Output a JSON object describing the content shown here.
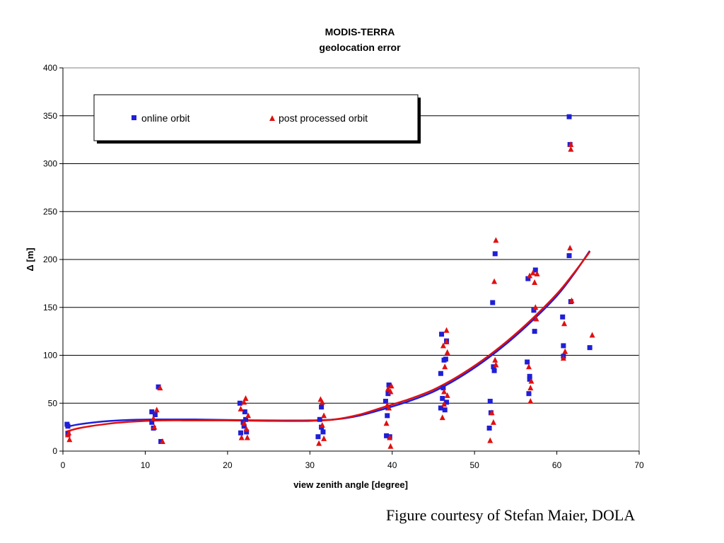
{
  "chart_data": {
    "type": "scatter",
    "title": [
      "MODIS-TERRA",
      "geolocation error"
    ],
    "xlabel": "view zenith angle [degree]",
    "ylabel": "Δ [m]",
    "xlim": [
      0,
      70
    ],
    "ylim": [
      0,
      400
    ],
    "xticks": [
      0,
      10,
      20,
      30,
      40,
      50,
      60,
      70
    ],
    "yticks": [
      0,
      50,
      100,
      150,
      200,
      250,
      300,
      350,
      400
    ],
    "grid": "horizontal",
    "legend_position": "top-left",
    "series": [
      {
        "name": "online orbit",
        "marker": "square",
        "color": "#1f1fd6",
        "points": [
          [
            0.5,
            28
          ],
          [
            0.6,
            26
          ],
          [
            0.6,
            18
          ],
          [
            10.8,
            41
          ],
          [
            10.8,
            30
          ],
          [
            11.0,
            24
          ],
          [
            11.2,
            38
          ],
          [
            11.6,
            67
          ],
          [
            11.9,
            10
          ],
          [
            21.5,
            50
          ],
          [
            21.6,
            19
          ],
          [
            21.9,
            30
          ],
          [
            22.0,
            26
          ],
          [
            22.1,
            41
          ],
          [
            22.2,
            33
          ],
          [
            22.3,
            20
          ],
          [
            31.0,
            15
          ],
          [
            31.2,
            33
          ],
          [
            31.4,
            46
          ],
          [
            31.4,
            25
          ],
          [
            31.6,
            20
          ],
          [
            39.2,
            52
          ],
          [
            39.3,
            16
          ],
          [
            39.4,
            37
          ],
          [
            39.5,
            45
          ],
          [
            39.5,
            60
          ],
          [
            39.6,
            69
          ],
          [
            39.7,
            15
          ],
          [
            45.9,
            81
          ],
          [
            45.9,
            45
          ],
          [
            46.0,
            122
          ],
          [
            46.1,
            55
          ],
          [
            46.2,
            66
          ],
          [
            46.3,
            95
          ],
          [
            46.4,
            43
          ],
          [
            46.5,
            96
          ],
          [
            46.6,
            115
          ],
          [
            46.6,
            51
          ],
          [
            51.8,
            24
          ],
          [
            51.9,
            52
          ],
          [
            52.0,
            40
          ],
          [
            52.2,
            155
          ],
          [
            52.3,
            88
          ],
          [
            52.4,
            84
          ],
          [
            52.5,
            206
          ],
          [
            56.4,
            93
          ],
          [
            56.5,
            180
          ],
          [
            56.6,
            60
          ],
          [
            56.7,
            78
          ],
          [
            56.7,
            75
          ],
          [
            57.2,
            147
          ],
          [
            57.4,
            189
          ],
          [
            57.3,
            125
          ],
          [
            60.7,
            140
          ],
          [
            60.8,
            110
          ],
          [
            60.8,
            99
          ],
          [
            61.5,
            349
          ],
          [
            61.6,
            320
          ],
          [
            61.5,
            204
          ],
          [
            61.7,
            156
          ],
          [
            64.0,
            108
          ]
        ]
      },
      {
        "name": "post processed orbit",
        "marker": "triangle",
        "color": "#e01010",
        "points": [
          [
            0.7,
            19
          ],
          [
            0.8,
            12
          ],
          [
            0.6,
            17
          ],
          [
            11.0,
            34
          ],
          [
            11.1,
            25
          ],
          [
            11.4,
            43
          ],
          [
            11.8,
            66
          ],
          [
            12.1,
            10
          ],
          [
            21.6,
            44
          ],
          [
            21.7,
            14
          ],
          [
            22.0,
            51
          ],
          [
            22.2,
            55
          ],
          [
            22.0,
            29
          ],
          [
            22.4,
            14
          ],
          [
            22.5,
            37
          ],
          [
            22.3,
            23
          ],
          [
            31.1,
            8
          ],
          [
            31.3,
            54
          ],
          [
            31.5,
            51
          ],
          [
            31.5,
            27
          ],
          [
            31.7,
            13
          ],
          [
            31.7,
            37
          ],
          [
            39.3,
            29
          ],
          [
            39.4,
            48
          ],
          [
            39.5,
            65
          ],
          [
            39.7,
            14
          ],
          [
            39.6,
            45
          ],
          [
            39.8,
            5
          ],
          [
            39.9,
            68
          ],
          [
            39.8,
            62
          ],
          [
            46.1,
            35
          ],
          [
            46.2,
            110
          ],
          [
            46.3,
            49
          ],
          [
            46.3,
            62
          ],
          [
            46.4,
            88
          ],
          [
            46.6,
            126
          ],
          [
            46.7,
            58
          ],
          [
            46.6,
            114
          ],
          [
            46.7,
            103
          ],
          [
            51.9,
            11
          ],
          [
            52.1,
            40
          ],
          [
            52.3,
            30
          ],
          [
            52.4,
            177
          ],
          [
            52.5,
            95
          ],
          [
            52.6,
            220
          ],
          [
            52.6,
            90
          ],
          [
            56.6,
            88
          ],
          [
            56.7,
            183
          ],
          [
            56.8,
            52
          ],
          [
            56.8,
            66
          ],
          [
            56.9,
            73
          ],
          [
            57.1,
            186
          ],
          [
            57.3,
            176
          ],
          [
            57.4,
            150
          ],
          [
            57.5,
            138
          ],
          [
            57.6,
            185
          ],
          [
            60.8,
            97
          ],
          [
            60.9,
            133
          ],
          [
            61.0,
            104
          ],
          [
            61.6,
            212
          ],
          [
            61.7,
            320
          ],
          [
            61.7,
            315
          ],
          [
            61.8,
            157
          ],
          [
            64.3,
            121
          ]
        ]
      }
    ],
    "trendlines": [
      {
        "series": "online orbit",
        "color": "#1f1fd6",
        "points": [
          [
            0.3,
            25
          ],
          [
            2,
            28
          ],
          [
            5,
            31
          ],
          [
            8,
            32.5
          ],
          [
            12,
            33
          ],
          [
            16,
            33
          ],
          [
            20,
            32.5
          ],
          [
            25,
            32
          ],
          [
            30,
            32
          ],
          [
            33,
            33
          ],
          [
            36,
            37
          ],
          [
            39,
            44
          ],
          [
            42,
            52
          ],
          [
            45,
            62
          ],
          [
            48,
            76
          ],
          [
            51,
            93
          ],
          [
            54,
            113
          ],
          [
            57,
            136
          ],
          [
            60,
            162
          ],
          [
            62,
            184
          ],
          [
            64,
            209
          ]
        ]
      },
      {
        "series": "post processed orbit",
        "color": "#e01010",
        "points": [
          [
            0.3,
            20
          ],
          [
            2,
            24
          ],
          [
            5,
            28
          ],
          [
            8,
            30.5
          ],
          [
            12,
            32
          ],
          [
            16,
            32
          ],
          [
            20,
            32
          ],
          [
            25,
            31.5
          ],
          [
            30,
            31.5
          ],
          [
            33,
            33
          ],
          [
            36,
            38
          ],
          [
            39,
            46
          ],
          [
            42,
            54
          ],
          [
            45,
            64
          ],
          [
            48,
            78
          ],
          [
            51,
            95
          ],
          [
            54,
            115
          ],
          [
            57,
            138
          ],
          [
            60,
            164
          ],
          [
            62,
            185
          ],
          [
            64,
            208
          ]
        ]
      }
    ]
  },
  "legend": {
    "series_1_label": "online orbit",
    "series_2_label": "post processed orbit"
  },
  "credit": "Figure courtesy of Stefan Maier, DOLA"
}
